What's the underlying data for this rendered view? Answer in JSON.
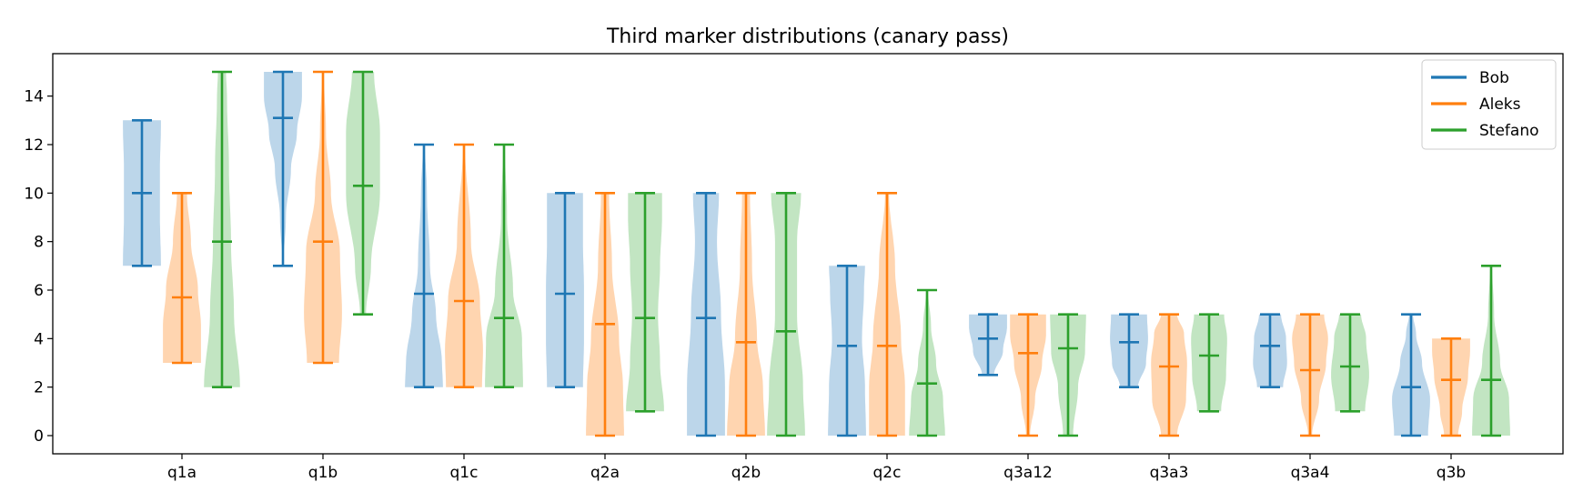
{
  "chart_data": {
    "type": "violin",
    "title": "Third marker distributions (canary pass)",
    "xlabel": "",
    "ylabel": "",
    "categories": [
      "q1a",
      "q1b",
      "q1c",
      "q2a",
      "q2b",
      "q2c",
      "q3a12",
      "q3a3",
      "q3a4",
      "q3b"
    ],
    "yticks": [
      0,
      2,
      4,
      6,
      8,
      10,
      12,
      14
    ],
    "ylim": [
      -0.75,
      15.75
    ],
    "grid": false,
    "legend": {
      "placement": "upper-right"
    },
    "series": [
      {
        "name": "Bob",
        "color": "#1f77b4",
        "fill": "#bcd6ea",
        "stats": [
          {
            "min": 7,
            "mean": 10.0,
            "max": 13,
            "profile": [
              [
                7,
                0.95
              ],
              [
                9,
                0.9
              ],
              [
                11,
                0.9
              ],
              [
                12.8,
                0.95
              ],
              [
                13,
                0.95
              ]
            ]
          },
          {
            "min": 7,
            "mean": 13.1,
            "max": 15,
            "profile": [
              [
                7,
                0.02
              ],
              [
                9,
                0.15
              ],
              [
                11,
                0.4
              ],
              [
                12.5,
                0.7
              ],
              [
                14,
                0.95
              ],
              [
                15,
                0.95
              ]
            ]
          },
          {
            "min": 2,
            "mean": 5.85,
            "max": 12,
            "profile": [
              [
                2,
                0.95
              ],
              [
                3,
                0.9
              ],
              [
                5,
                0.6
              ],
              [
                7,
                0.3
              ],
              [
                10,
                0.15
              ],
              [
                12,
                0.05
              ]
            ]
          },
          {
            "min": 2,
            "mean": 5.85,
            "max": 10,
            "profile": [
              [
                2,
                0.9
              ],
              [
                4,
                0.95
              ],
              [
                6,
                0.95
              ],
              [
                8,
                0.9
              ],
              [
                10,
                0.9
              ]
            ]
          },
          {
            "min": 0,
            "mean": 4.85,
            "max": 10,
            "profile": [
              [
                0,
                0.95
              ],
              [
                2,
                0.95
              ],
              [
                5,
                0.75
              ],
              [
                8,
                0.55
              ],
              [
                10,
                0.65
              ]
            ]
          },
          {
            "min": 0,
            "mean": 3.7,
            "max": 7,
            "profile": [
              [
                0,
                0.95
              ],
              [
                2,
                0.9
              ],
              [
                4,
                0.75
              ],
              [
                6,
                0.85
              ],
              [
                7,
                0.9
              ]
            ]
          },
          {
            "min": 2.5,
            "mean": 4.0,
            "max": 5,
            "profile": [
              [
                2.5,
                0.3
              ],
              [
                3.5,
                0.75
              ],
              [
                4.5,
                0.95
              ],
              [
                5,
                0.95
              ]
            ]
          },
          {
            "min": 2,
            "mean": 3.85,
            "max": 5,
            "profile": [
              [
                2,
                0.45
              ],
              [
                3,
                0.85
              ],
              [
                4,
                0.95
              ],
              [
                5,
                0.9
              ]
            ]
          },
          {
            "min": 2,
            "mean": 3.7,
            "max": 5,
            "profile": [
              [
                2,
                0.65
              ],
              [
                3,
                0.85
              ],
              [
                4,
                0.8
              ],
              [
                5,
                0.55
              ]
            ]
          },
          {
            "min": 0,
            "mean": 2.0,
            "max": 5,
            "profile": [
              [
                0,
                0.85
              ],
              [
                1.5,
                0.95
              ],
              [
                3,
                0.55
              ],
              [
                4.2,
                0.25
              ],
              [
                5,
                0.1
              ]
            ]
          }
        ]
      },
      {
        "name": "Aleks",
        "color": "#ff7f0e",
        "fill": "#ffd5b0",
        "stats": [
          {
            "min": 3,
            "mean": 5.7,
            "max": 10,
            "profile": [
              [
                3,
                0.95
              ],
              [
                4.5,
                0.95
              ],
              [
                6,
                0.8
              ],
              [
                8,
                0.45
              ],
              [
                10,
                0.25
              ]
            ]
          },
          {
            "min": 3,
            "mean": 8.0,
            "max": 15,
            "profile": [
              [
                3,
                0.8
              ],
              [
                5,
                0.95
              ],
              [
                7.5,
                0.85
              ],
              [
                10,
                0.4
              ],
              [
                12.5,
                0.15
              ],
              [
                15,
                0.05
              ]
            ]
          },
          {
            "min": 2,
            "mean": 5.55,
            "max": 12,
            "profile": [
              [
                2,
                0.9
              ],
              [
                3.5,
                0.95
              ],
              [
                5.5,
                0.8
              ],
              [
                8,
                0.35
              ],
              [
                12,
                0.05
              ]
            ]
          },
          {
            "min": 0,
            "mean": 4.6,
            "max": 10,
            "profile": [
              [
                0,
                0.95
              ],
              [
                2,
                0.9
              ],
              [
                4,
                0.7
              ],
              [
                7,
                0.35
              ],
              [
                10,
                0.2
              ]
            ]
          },
          {
            "min": 0,
            "mean": 3.85,
            "max": 10,
            "profile": [
              [
                0,
                0.95
              ],
              [
                2,
                0.85
              ],
              [
                4,
                0.55
              ],
              [
                7,
                0.3
              ],
              [
                10,
                0.2
              ]
            ]
          },
          {
            "min": 0,
            "mean": 3.7,
            "max": 10,
            "profile": [
              [
                0,
                0.9
              ],
              [
                2,
                0.9
              ],
              [
                4,
                0.7
              ],
              [
                7,
                0.4
              ],
              [
                10,
                0.1
              ]
            ]
          },
          {
            "min": 0,
            "mean": 3.4,
            "max": 5,
            "profile": [
              [
                0,
                0.1
              ],
              [
                1.5,
                0.35
              ],
              [
                3,
                0.7
              ],
              [
                4.2,
                0.9
              ],
              [
                5,
                0.9
              ]
            ]
          },
          {
            "min": 0,
            "mean": 2.85,
            "max": 5,
            "profile": [
              [
                0,
                0.4
              ],
              [
                1.5,
                0.85
              ],
              [
                3,
                0.9
              ],
              [
                4.2,
                0.75
              ],
              [
                5,
                0.4
              ]
            ]
          },
          {
            "min": 0,
            "mean": 2.7,
            "max": 5,
            "profile": [
              [
                0,
                0.1
              ],
              [
                1.5,
                0.45
              ],
              [
                3,
                0.8
              ],
              [
                4,
                0.9
              ],
              [
                5,
                0.7
              ]
            ]
          },
          {
            "min": 0,
            "mean": 2.3,
            "max": 4,
            "profile": [
              [
                0,
                0.35
              ],
              [
                1,
                0.55
              ],
              [
                2.5,
                0.85
              ],
              [
                3.5,
                0.95
              ],
              [
                4,
                0.95
              ]
            ]
          }
        ]
      },
      {
        "name": "Stefano",
        "color": "#2ca02c",
        "fill": "#c2e5c2",
        "stats": [
          {
            "min": 2,
            "mean": 8.0,
            "max": 15,
            "profile": [
              [
                2,
                0.9
              ],
              [
                5,
                0.6
              ],
              [
                8,
                0.45
              ],
              [
                11,
                0.35
              ],
              [
                14,
                0.25
              ],
              [
                15,
                0.2
              ]
            ]
          },
          {
            "min": 5,
            "mean": 10.3,
            "max": 15,
            "profile": [
              [
                5,
                0.15
              ],
              [
                7,
                0.4
              ],
              [
                10,
                0.85
              ],
              [
                12.5,
                0.85
              ],
              [
                15,
                0.55
              ]
            ]
          },
          {
            "min": 2,
            "mean": 4.85,
            "max": 12,
            "profile": [
              [
                2,
                0.95
              ],
              [
                4,
                0.9
              ],
              [
                6,
                0.45
              ],
              [
                9,
                0.15
              ],
              [
                12,
                0.05
              ]
            ]
          },
          {
            "min": 1,
            "mean": 4.85,
            "max": 10,
            "profile": [
              [
                1,
                0.95
              ],
              [
                3,
                0.75
              ],
              [
                5,
                0.65
              ],
              [
                7,
                0.75
              ],
              [
                9,
                0.85
              ],
              [
                10,
                0.85
              ]
            ]
          },
          {
            "min": 0,
            "mean": 4.3,
            "max": 10,
            "profile": [
              [
                0,
                0.95
              ],
              [
                2,
                0.85
              ],
              [
                5,
                0.55
              ],
              [
                8,
                0.55
              ],
              [
                10,
                0.75
              ]
            ]
          },
          {
            "min": 0,
            "mean": 2.15,
            "max": 6,
            "profile": [
              [
                0,
                0.9
              ],
              [
                1.5,
                0.8
              ],
              [
                3,
                0.45
              ],
              [
                4.5,
                0.2
              ],
              [
                6,
                0.05
              ]
            ]
          },
          {
            "min": 0,
            "mean": 3.6,
            "max": 5,
            "profile": [
              [
                0,
                0.25
              ],
              [
                2,
                0.5
              ],
              [
                3.5,
                0.85
              ],
              [
                5,
                0.9
              ]
            ]
          },
          {
            "min": 1,
            "mean": 3.3,
            "max": 5,
            "profile": [
              [
                1,
                0.6
              ],
              [
                2.5,
                0.85
              ],
              [
                4,
                0.9
              ],
              [
                5,
                0.75
              ]
            ]
          },
          {
            "min": 1,
            "mean": 2.85,
            "max": 5,
            "profile": [
              [
                1,
                0.75
              ],
              [
                2.5,
                0.95
              ],
              [
                4,
                0.8
              ],
              [
                5,
                0.55
              ]
            ]
          },
          {
            "min": 0,
            "mean": 2.3,
            "max": 7,
            "profile": [
              [
                0,
                0.95
              ],
              [
                1.5,
                0.9
              ],
              [
                3,
                0.45
              ],
              [
                5,
                0.15
              ],
              [
                7,
                0.05
              ]
            ]
          }
        ]
      }
    ]
  }
}
